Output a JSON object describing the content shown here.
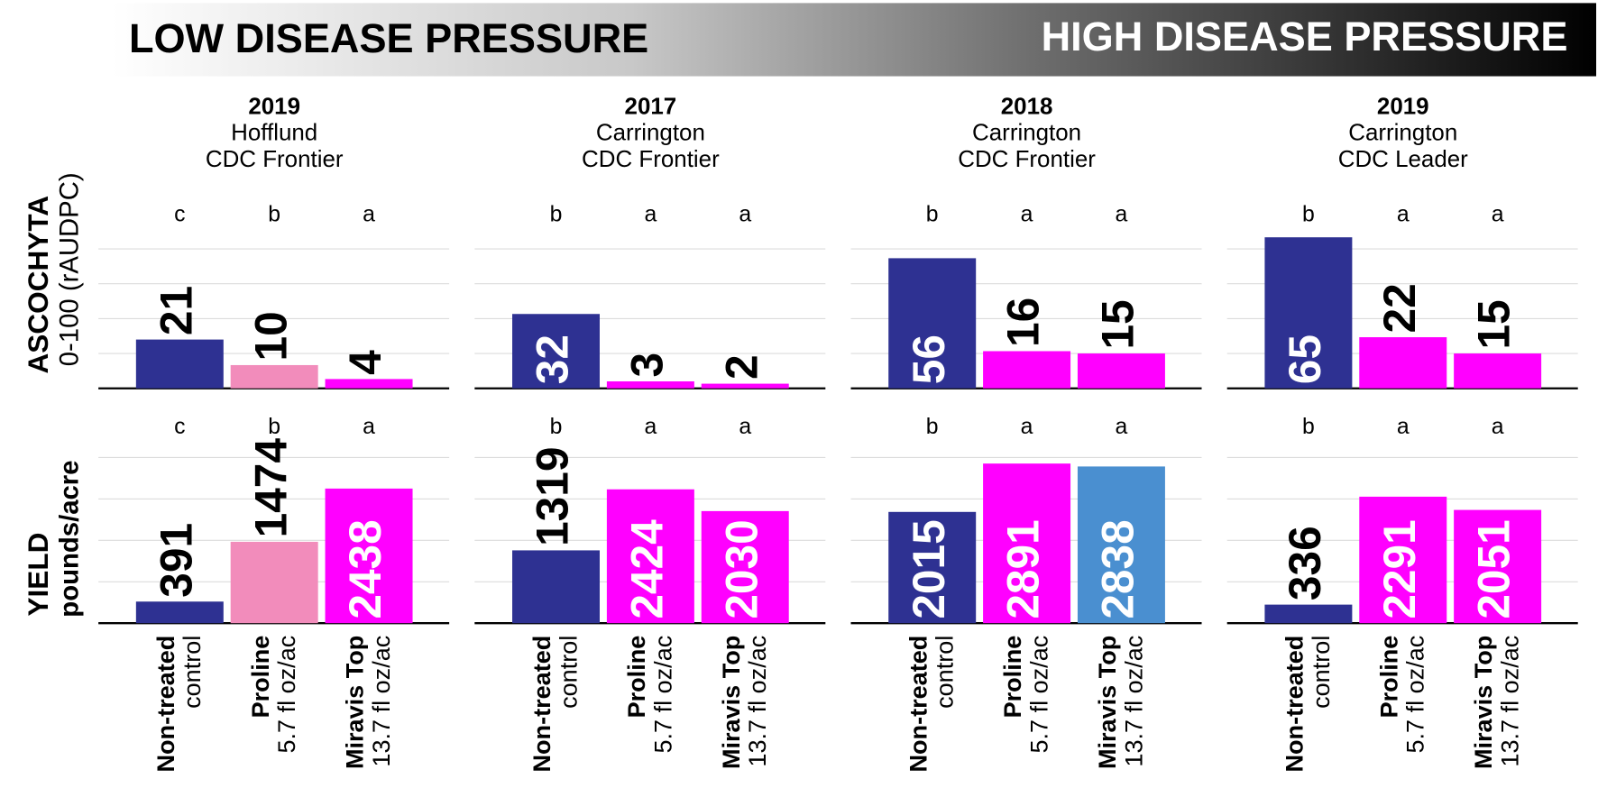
{
  "banner": {
    "left": "LOW DISEASE PRESSURE",
    "right": "HIGH DISEASE PRESSURE"
  },
  "rows": [
    {
      "label": "ASCOCHYTA",
      "sublabel": "0-100 (rAUDPC)"
    },
    {
      "label": "YIELD",
      "sublabel": "pounds/acre"
    }
  ],
  "panels": [
    {
      "year": "2019",
      "location": "Hofflund",
      "cultivar": "CDC Frontier"
    },
    {
      "year": "2017",
      "location": "Carrington",
      "cultivar": "CDC Frontier"
    },
    {
      "year": "2018",
      "location": "Carrington",
      "cultivar": "CDC Frontier"
    },
    {
      "year": "2019",
      "location": "Carrington",
      "cultivar": "CDC Leader"
    }
  ],
  "chart_data": [
    {
      "type": "bar",
      "values": [
        21,
        10,
        4
      ],
      "letters": [
        "c",
        "b",
        "a"
      ],
      "colors": [
        "#2e3192",
        "#f28cbb",
        "#ff00ff"
      ],
      "ylim": [
        0,
        70
      ],
      "yticks": [
        0,
        15,
        30,
        45,
        60
      ],
      "grid": true
    },
    {
      "type": "bar",
      "values": [
        32,
        3,
        2
      ],
      "letters": [
        "b",
        "a",
        "a"
      ],
      "colors": [
        "#2e3192",
        "#ff00ff",
        "#ff00ff"
      ],
      "ylim": [
        0,
        70
      ],
      "yticks": [
        0,
        15,
        30,
        45,
        60
      ],
      "grid": true
    },
    {
      "type": "bar",
      "values": [
        56,
        16,
        15
      ],
      "letters": [
        "b",
        "a",
        "a"
      ],
      "colors": [
        "#2e3192",
        "#ff00ff",
        "#ff00ff"
      ],
      "ylim": [
        0,
        70
      ],
      "yticks": [
        0,
        15,
        30,
        45,
        60
      ],
      "grid": true
    },
    {
      "type": "bar",
      "values": [
        65,
        22,
        15
      ],
      "letters": [
        "b",
        "a",
        "a"
      ],
      "colors": [
        "#2e3192",
        "#ff00ff",
        "#ff00ff"
      ],
      "ylim": [
        0,
        70
      ],
      "yticks": [
        0,
        15,
        30,
        45,
        60
      ],
      "grid": true
    },
    {
      "type": "bar",
      "categories": [
        "Non-treated",
        "Proline",
        "Miravis Top"
      ],
      "category_notes": [
        "control",
        "5.7 fl oz/ac",
        "13.7 fl oz/ac"
      ],
      "values": [
        391,
        1474,
        2438
      ],
      "letters": [
        "c",
        "b",
        "a"
      ],
      "colors": [
        "#2e3192",
        "#f28cbb",
        "#ff00ff"
      ],
      "ylim": [
        0,
        3250
      ],
      "yticks": [
        0,
        750,
        1500,
        2250,
        3000
      ],
      "grid": true
    },
    {
      "type": "bar",
      "categories": [
        "Non-treated",
        "Proline",
        "Miravis Top"
      ],
      "category_notes": [
        "control",
        "5.7 fl oz/ac",
        "13.7 fl oz/ac"
      ],
      "values": [
        1319,
        2424,
        2030
      ],
      "letters": [
        "b",
        "a",
        "a"
      ],
      "colors": [
        "#2e3192",
        "#ff00ff",
        "#ff00ff"
      ],
      "ylim": [
        0,
        3250
      ],
      "yticks": [
        0,
        750,
        1500,
        2250,
        3000
      ],
      "grid": true
    },
    {
      "type": "bar",
      "categories": [
        "Non-treated",
        "Proline",
        "Miravis Top"
      ],
      "category_notes": [
        "control",
        "5.7 fl oz/ac",
        "13.7 fl oz/ac"
      ],
      "values": [
        2015,
        2891,
        2838
      ],
      "letters": [
        "b",
        "a",
        "a"
      ],
      "colors": [
        "#2e3192",
        "#ff00ff",
        "#4a8fd0"
      ],
      "ylim": [
        0,
        3250
      ],
      "yticks": [
        0,
        750,
        1500,
        2250,
        3000
      ],
      "grid": true
    },
    {
      "type": "bar",
      "categories": [
        "Non-treated",
        "Proline",
        "Miravis Top"
      ],
      "category_notes": [
        "control",
        "5.7 fl oz/ac",
        "13.7 fl oz/ac"
      ],
      "values": [
        336,
        2291,
        2051
      ],
      "letters": [
        "b",
        "a",
        "a"
      ],
      "colors": [
        "#2e3192",
        "#ff00ff",
        "#ff00ff"
      ],
      "ylim": [
        0,
        3250
      ],
      "yticks": [
        0,
        750,
        1500,
        2250,
        3000
      ],
      "grid": true
    }
  ]
}
